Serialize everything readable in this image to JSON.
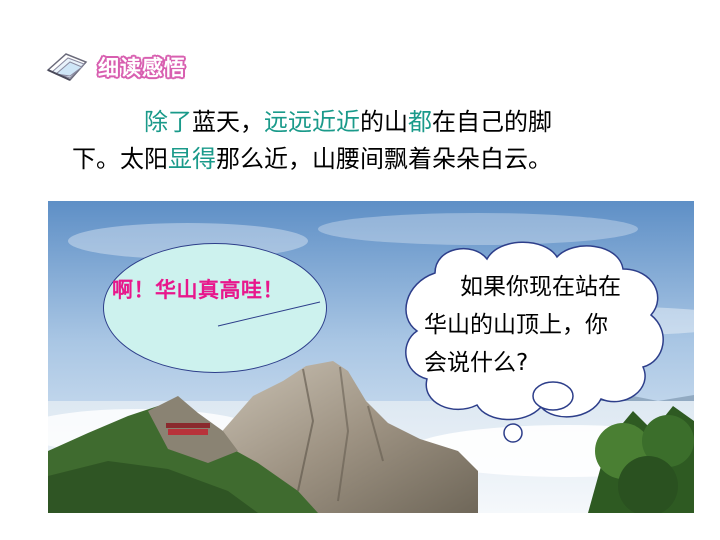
{
  "header": {
    "title": "细读感悟",
    "icon": "notebook-pages-icon"
  },
  "passage": [
    {
      "text": "除了",
      "highlight": true
    },
    {
      "text": "蓝天，",
      "highlight": false
    },
    {
      "text": "远远近近",
      "highlight": true
    },
    {
      "text": "的山",
      "highlight": false
    },
    {
      "text": "都",
      "highlight": true
    },
    {
      "text": "在自己的脚",
      "highlight": false
    },
    {
      "text": "下。太阳",
      "highlight": false
    },
    {
      "text": "显得",
      "highlight": true
    },
    {
      "text": "那么近，山腰间飘着朵朵白云。",
      "highlight": false
    }
  ],
  "bubbles": {
    "exclaim": "啊！华山真高哇！",
    "question_lines": [
      "如果你现在站在",
      "华山的山顶上，你",
      "会说什么?"
    ]
  },
  "colors": {
    "highlight": "#1a9a8a",
    "header_outline": "#d85fb0",
    "exclaim_text": "#e8178c",
    "ellipse_fill": "#cdf2ee"
  }
}
